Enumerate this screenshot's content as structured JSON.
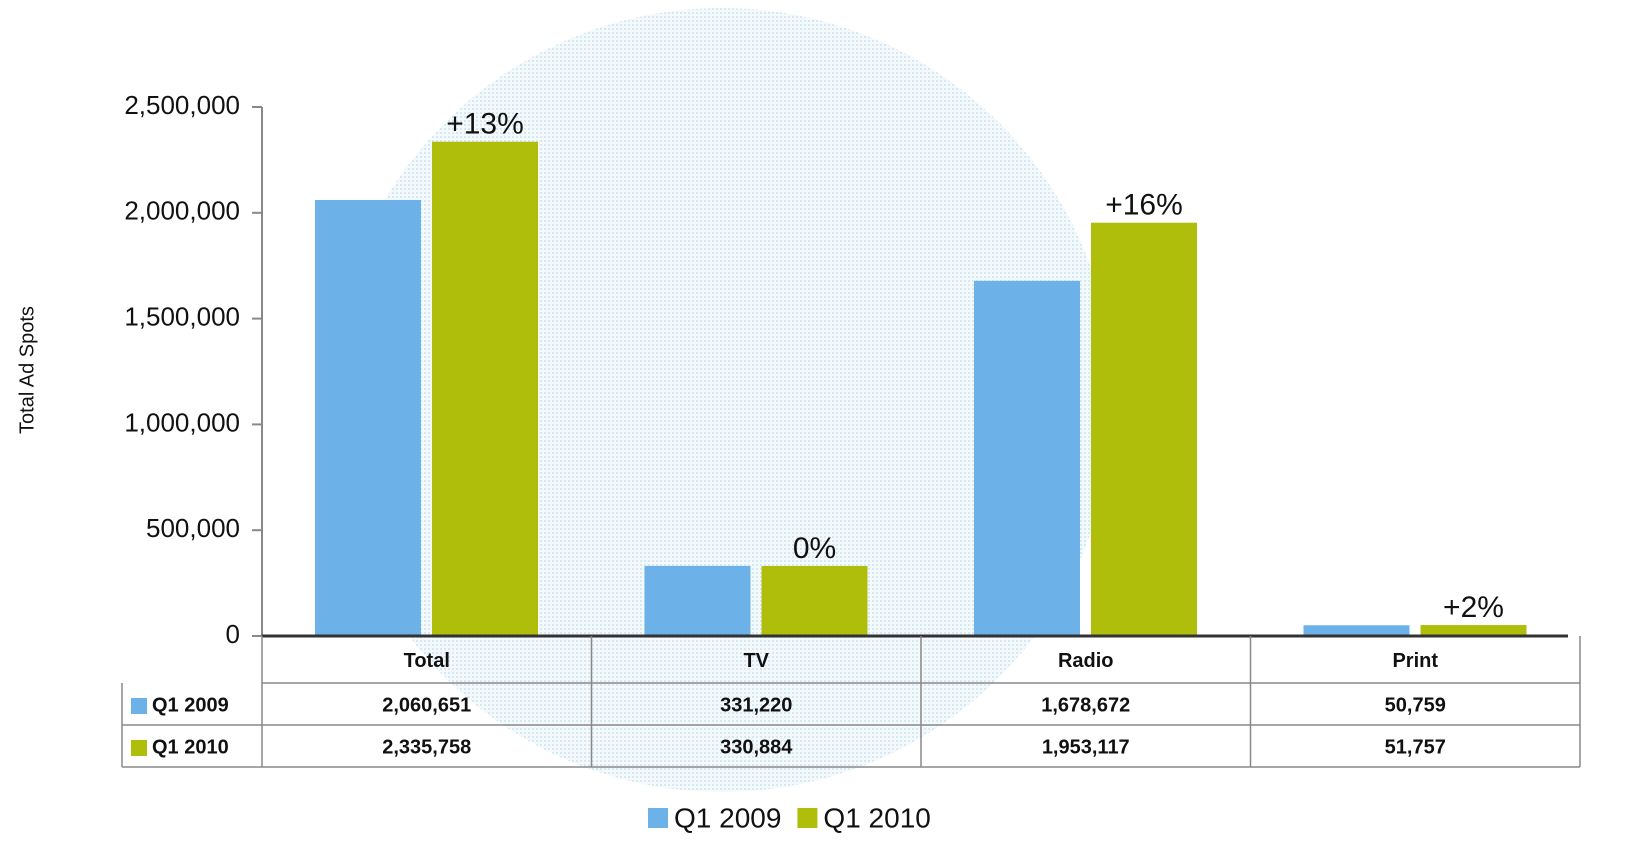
{
  "chart_data": {
    "type": "bar",
    "y_label": "Total Ad Spots",
    "categories": [
      "Total",
      "TV",
      "Radio",
      "Print"
    ],
    "series": [
      {
        "name": "Q1 2009",
        "color": "#6cb2e8",
        "values": [
          2060651,
          331220,
          1678672,
          50759
        ],
        "value_labels": [
          "2,060,651",
          "331,220",
          "1,678,672",
          "50,759"
        ]
      },
      {
        "name": "Q1 2010",
        "color": "#afbe0a",
        "values": [
          2335758,
          330884,
          1953117,
          51757
        ],
        "value_labels": [
          "2,335,758",
          "330,884",
          "1,953,117",
          "51,757"
        ]
      }
    ],
    "annotations": [
      "+13%",
      "0%",
      "+16%",
      "+2%"
    ],
    "ylim": [
      0,
      2500000
    ],
    "yticks": [
      0,
      {
        "value": 500000,
        "label": "500,000"
      },
      {
        "value": 1000000,
        "label": "1,000,000"
      },
      {
        "value": 1500000,
        "label": "1,500,000"
      },
      {
        "value": 2000000,
        "label": "2,000,000"
      },
      {
        "value": 2500000,
        "label": "2,500,000"
      }
    ],
    "legend": "bottom"
  }
}
